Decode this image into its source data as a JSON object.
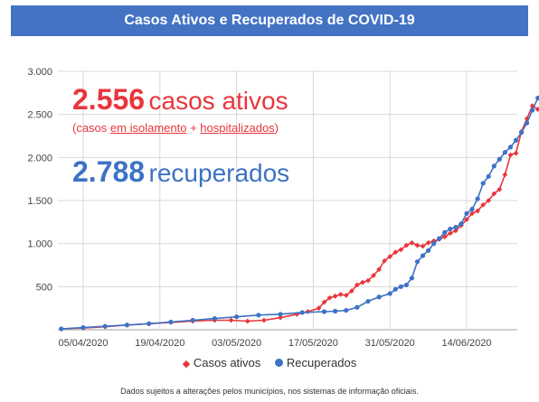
{
  "header": {
    "title": "Casos Ativos e Recuperados de COVID-19"
  },
  "highlight": {
    "active_value": "2.556",
    "active_label": "casos ativos",
    "active_note_open": "(casos ",
    "active_note_isolation": "em isolamento",
    "active_note_plus": " + ",
    "active_note_hospital": "hospitalizados",
    "active_note_close": ")",
    "recovered_value": "2.788",
    "recovered_label": "recuperados"
  },
  "legend": {
    "active": "Casos ativos",
    "recovered": "Recuperados"
  },
  "footnote": "Dados sujeitos a alterações pelos municípios, nos sistemas de informação oficiais.",
  "colors": {
    "active": "#e8363c",
    "recovered": "#3d72c4",
    "grid": "#d9d9d9"
  },
  "chart_data": {
    "type": "line",
    "y_ticks": [
      {
        "value": 500,
        "label": "500"
      },
      {
        "value": 1000,
        "label": "1.000"
      },
      {
        "value": 1500,
        "label": "1.500"
      },
      {
        "value": 2000,
        "label": "2.000"
      },
      {
        "value": 2500,
        "label": "2.500"
      },
      {
        "value": 3000,
        "label": "3.000"
      }
    ],
    "ylim": [
      0,
      3000
    ],
    "x_range": [
      "2020-04-01",
      "2020-06-26"
    ],
    "x_ticks": [
      {
        "date": "2020-04-05",
        "label": "05/04/2020"
      },
      {
        "date": "2020-04-19",
        "label": "19/04/2020"
      },
      {
        "date": "2020-05-03",
        "label": "03/05/2020"
      },
      {
        "date": "2020-05-17",
        "label": "17/05/2020"
      },
      {
        "date": "2020-05-31",
        "label": "31/05/2020"
      },
      {
        "date": "2020-06-14",
        "label": "14/06/2020"
      }
    ],
    "grid": true,
    "legend_position": "bottom",
    "series": [
      {
        "name": "Casos ativos",
        "marker": "diamond",
        "points": [
          [
            "2020-04-01",
            10
          ],
          [
            "2020-04-05",
            20
          ],
          [
            "2020-04-09",
            35
          ],
          [
            "2020-04-13",
            55
          ],
          [
            "2020-04-17",
            70
          ],
          [
            "2020-04-21",
            85
          ],
          [
            "2020-04-25",
            100
          ],
          [
            "2020-04-29",
            110
          ],
          [
            "2020-05-02",
            110
          ],
          [
            "2020-05-05",
            100
          ],
          [
            "2020-05-08",
            110
          ],
          [
            "2020-05-11",
            140
          ],
          [
            "2020-05-14",
            180
          ],
          [
            "2020-05-16",
            210
          ],
          [
            "2020-05-18",
            250
          ],
          [
            "2020-05-19",
            320
          ],
          [
            "2020-05-20",
            370
          ],
          [
            "2020-05-21",
            390
          ],
          [
            "2020-05-22",
            410
          ],
          [
            "2020-05-23",
            400
          ],
          [
            "2020-05-24",
            450
          ],
          [
            "2020-05-25",
            520
          ],
          [
            "2020-05-26",
            550
          ],
          [
            "2020-05-27",
            570
          ],
          [
            "2020-05-28",
            630
          ],
          [
            "2020-05-29",
            700
          ],
          [
            "2020-05-30",
            800
          ],
          [
            "2020-05-31",
            850
          ],
          [
            "2020-06-01",
            900
          ],
          [
            "2020-06-02",
            930
          ],
          [
            "2020-06-03",
            980
          ],
          [
            "2020-06-04",
            1010
          ],
          [
            "2020-06-05",
            980
          ],
          [
            "2020-06-06",
            970
          ],
          [
            "2020-06-07",
            1010
          ],
          [
            "2020-06-08",
            1030
          ],
          [
            "2020-06-09",
            1050
          ],
          [
            "2020-06-10",
            1080
          ],
          [
            "2020-06-11",
            1120
          ],
          [
            "2020-06-12",
            1150
          ],
          [
            "2020-06-13",
            1210
          ],
          [
            "2020-06-14",
            1280
          ],
          [
            "2020-06-15",
            1350
          ],
          [
            "2020-06-16",
            1380
          ],
          [
            "2020-06-17",
            1450
          ],
          [
            "2020-06-18",
            1500
          ],
          [
            "2020-06-19",
            1580
          ],
          [
            "2020-06-20",
            1630
          ],
          [
            "2020-06-21",
            1800
          ],
          [
            "2020-06-22",
            2030
          ],
          [
            "2020-06-23",
            2050
          ],
          [
            "2020-06-24",
            2300
          ],
          [
            "2020-06-25",
            2450
          ],
          [
            "2020-06-26",
            2600
          ],
          [
            "2020-06-27",
            2560
          ],
          [
            "2020-06-28",
            2556
          ]
        ]
      },
      {
        "name": "Recuperados",
        "marker": "circle",
        "points": [
          [
            "2020-04-01",
            10
          ],
          [
            "2020-04-05",
            25
          ],
          [
            "2020-04-09",
            40
          ],
          [
            "2020-04-13",
            55
          ],
          [
            "2020-04-17",
            70
          ],
          [
            "2020-04-21",
            90
          ],
          [
            "2020-04-25",
            110
          ],
          [
            "2020-04-29",
            130
          ],
          [
            "2020-05-03",
            150
          ],
          [
            "2020-05-07",
            170
          ],
          [
            "2020-05-11",
            180
          ],
          [
            "2020-05-15",
            200
          ],
          [
            "2020-05-19",
            210
          ],
          [
            "2020-05-21",
            215
          ],
          [
            "2020-05-23",
            225
          ],
          [
            "2020-05-25",
            260
          ],
          [
            "2020-05-27",
            330
          ],
          [
            "2020-05-29",
            380
          ],
          [
            "2020-05-31",
            420
          ],
          [
            "2020-06-01",
            470
          ],
          [
            "2020-06-02",
            500
          ],
          [
            "2020-06-03",
            520
          ],
          [
            "2020-06-04",
            600
          ],
          [
            "2020-06-05",
            790
          ],
          [
            "2020-06-06",
            860
          ],
          [
            "2020-06-07",
            920
          ],
          [
            "2020-06-08",
            1000
          ],
          [
            "2020-06-09",
            1060
          ],
          [
            "2020-06-10",
            1130
          ],
          [
            "2020-06-11",
            1170
          ],
          [
            "2020-06-12",
            1190
          ],
          [
            "2020-06-13",
            1230
          ],
          [
            "2020-06-14",
            1350
          ],
          [
            "2020-06-15",
            1400
          ],
          [
            "2020-06-16",
            1520
          ],
          [
            "2020-06-17",
            1700
          ],
          [
            "2020-06-18",
            1780
          ],
          [
            "2020-06-19",
            1900
          ],
          [
            "2020-06-20",
            1980
          ],
          [
            "2020-06-21",
            2060
          ],
          [
            "2020-06-22",
            2120
          ],
          [
            "2020-06-23",
            2200
          ],
          [
            "2020-06-24",
            2290
          ],
          [
            "2020-06-25",
            2400
          ],
          [
            "2020-06-26",
            2550
          ],
          [
            "2020-06-27",
            2690
          ],
          [
            "2020-06-28",
            2788
          ]
        ]
      }
    ]
  }
}
